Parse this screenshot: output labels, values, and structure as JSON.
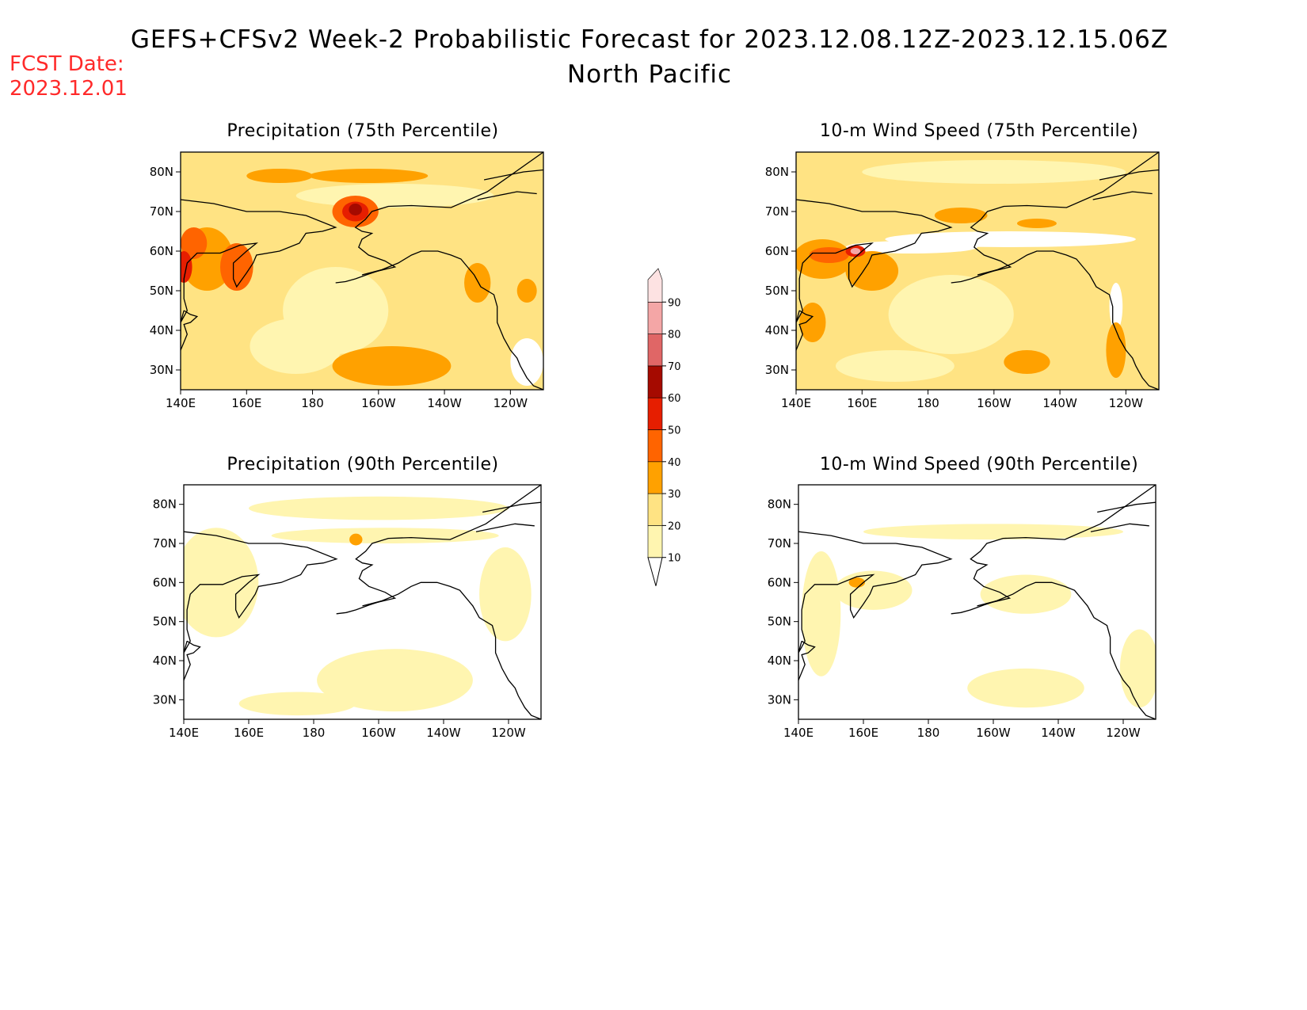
{
  "title_line1": "GEFS+CFSv2 Week-2 Probabilistic Forecast for 2023.12.08.12Z-2023.12.15.06Z",
  "title_line2": "North Pacific",
  "fcst_label": "FCST Date:",
  "fcst_date": "2023.12.01",
  "panels": [
    {
      "title": "Precipitation (75th Percentile)"
    },
    {
      "title": "10-m Wind Speed (75th Percentile)"
    },
    {
      "title": "Precipitation (90th Percentile)"
    },
    {
      "title": "10-m Wind Speed (90th Percentile)"
    }
  ],
  "lat_labels": [
    "80N",
    "70N",
    "60N",
    "50N",
    "40N",
    "30N"
  ],
  "lon_labels": [
    "140E",
    "160E",
    "180",
    "160W",
    "140W",
    "120W"
  ],
  "colorbar": {
    "levels": [
      "10",
      "20",
      "30",
      "40",
      "50",
      "60",
      "70",
      "80",
      "90"
    ],
    "colors": [
      "#fff5b0",
      "#ffe383",
      "#ffa100",
      "#ff6400",
      "#e61e00",
      "#a50a00",
      "#e06666",
      "#f4a6a6",
      "#fde2e2"
    ]
  }
}
